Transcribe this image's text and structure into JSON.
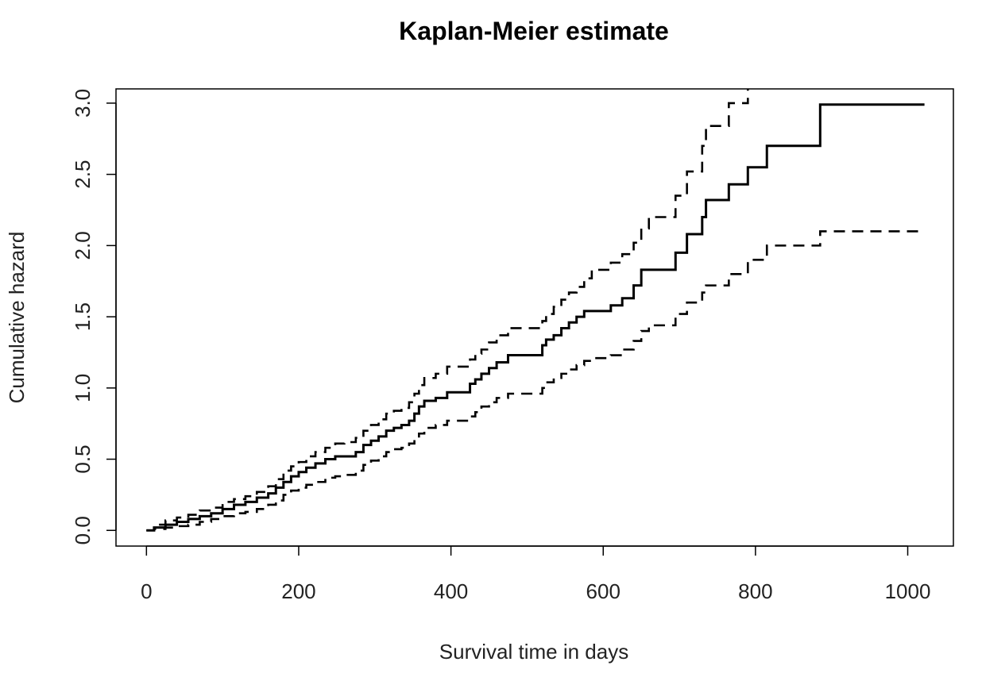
{
  "chart_data": {
    "type": "line",
    "title": "Kaplan-Meier estimate",
    "xlabel": "Survival time in days",
    "ylabel": "Cumulative hazard",
    "xlim": [
      -40,
      1060
    ],
    "ylim": [
      -0.11,
      3.1
    ],
    "x_ticks": [
      0,
      200,
      400,
      600,
      800,
      1000
    ],
    "x_tick_labels": [
      "0",
      "200",
      "400",
      "600",
      "800",
      "1000"
    ],
    "y_ticks": [
      0,
      0.5,
      1,
      1.5,
      2,
      2.5,
      3
    ],
    "y_tick_labels": [
      "0.0",
      "0.5",
      "1.0",
      "1.5",
      "2.0",
      "2.5",
      "3.0"
    ],
    "grid": false,
    "step": true,
    "series": [
      {
        "line_style": "solid",
        "color": "#000000",
        "x": [
          0,
          10,
          25,
          40,
          55,
          70,
          85,
          100,
          115,
          130,
          145,
          160,
          170,
          180,
          190,
          200,
          210,
          222,
          235,
          248,
          260,
          275,
          285,
          295,
          305,
          315,
          325,
          335,
          345,
          352,
          358,
          365,
          380,
          395,
          425,
          432,
          440,
          450,
          460,
          475,
          520,
          525,
          535,
          545,
          555,
          565,
          575,
          585,
          610,
          625,
          640,
          650,
          660,
          695,
          710,
          730,
          735,
          765,
          790,
          815,
          885,
          1022
        ],
        "y": [
          0,
          0.02,
          0.04,
          0.06,
          0.08,
          0.1,
          0.12,
          0.15,
          0.18,
          0.2,
          0.23,
          0.26,
          0.3,
          0.34,
          0.38,
          0.41,
          0.44,
          0.47,
          0.5,
          0.52,
          0.52,
          0.55,
          0.6,
          0.63,
          0.66,
          0.7,
          0.72,
          0.74,
          0.77,
          0.82,
          0.87,
          0.91,
          0.93,
          0.97,
          1.03,
          1.06,
          1.1,
          1.14,
          1.18,
          1.23,
          1.3,
          1.34,
          1.37,
          1.42,
          1.46,
          1.5,
          1.54,
          1.54,
          1.58,
          1.63,
          1.72,
          1.83,
          1.83,
          1.95,
          2.08,
          2.2,
          2.32,
          2.43,
          2.55,
          2.7,
          2.99,
          2.99
        ]
      },
      {
        "line_style": "dashed",
        "color": "#000000",
        "x": [
          0,
          10,
          25,
          40,
          55,
          70,
          85,
          100,
          115,
          130,
          145,
          160,
          170,
          180,
          190,
          200,
          210,
          222,
          235,
          248,
          260,
          275,
          285,
          295,
          305,
          315,
          325,
          335,
          345,
          352,
          358,
          365,
          380,
          395,
          425,
          432,
          440,
          450,
          460,
          475,
          520,
          525,
          535,
          545,
          555,
          565,
          575,
          585,
          610,
          625,
          640,
          650,
          660,
          695,
          710,
          730,
          735,
          765,
          790
        ],
        "y": [
          0,
          0.04,
          0.07,
          0.09,
          0.11,
          0.14,
          0.16,
          0.2,
          0.22,
          0.24,
          0.27,
          0.31,
          0.36,
          0.42,
          0.45,
          0.48,
          0.52,
          0.55,
          0.58,
          0.61,
          0.62,
          0.65,
          0.7,
          0.74,
          0.78,
          0.82,
          0.84,
          0.86,
          0.9,
          0.96,
          1.02,
          1.07,
          1.1,
          1.15,
          1.2,
          1.24,
          1.27,
          1.32,
          1.37,
          1.42,
          1.47,
          1.52,
          1.57,
          1.62,
          1.67,
          1.71,
          1.77,
          1.83,
          1.88,
          1.94,
          2.02,
          2.12,
          2.2,
          2.35,
          2.52,
          2.7,
          2.84,
          3.0,
          3.1
        ]
      },
      {
        "line_style": "dashed",
        "color": "#000000",
        "x": [
          0,
          10,
          25,
          40,
          55,
          70,
          85,
          100,
          115,
          130,
          145,
          160,
          170,
          180,
          190,
          200,
          210,
          222,
          235,
          248,
          260,
          275,
          285,
          295,
          305,
          315,
          325,
          335,
          345,
          352,
          358,
          365,
          380,
          395,
          425,
          432,
          440,
          450,
          460,
          475,
          520,
          525,
          535,
          545,
          555,
          565,
          575,
          585,
          610,
          625,
          640,
          650,
          660,
          695,
          710,
          730,
          735,
          765,
          790,
          815,
          885,
          1022
        ],
        "y": [
          0,
          0.01,
          0.02,
          0.03,
          0.04,
          0.06,
          0.08,
          0.1,
          0.12,
          0.13,
          0.15,
          0.18,
          0.21,
          0.25,
          0.28,
          0.3,
          0.32,
          0.34,
          0.37,
          0.38,
          0.39,
          0.42,
          0.46,
          0.49,
          0.52,
          0.55,
          0.57,
          0.58,
          0.61,
          0.64,
          0.68,
          0.72,
          0.74,
          0.77,
          0.8,
          0.83,
          0.87,
          0.9,
          0.93,
          0.96,
          1.0,
          1.04,
          1.07,
          1.1,
          1.13,
          1.16,
          1.19,
          1.21,
          1.23,
          1.27,
          1.33,
          1.4,
          1.44,
          1.52,
          1.6,
          1.67,
          1.72,
          1.8,
          1.9,
          2.0,
          2.1,
          2.1
        ]
      }
    ]
  }
}
